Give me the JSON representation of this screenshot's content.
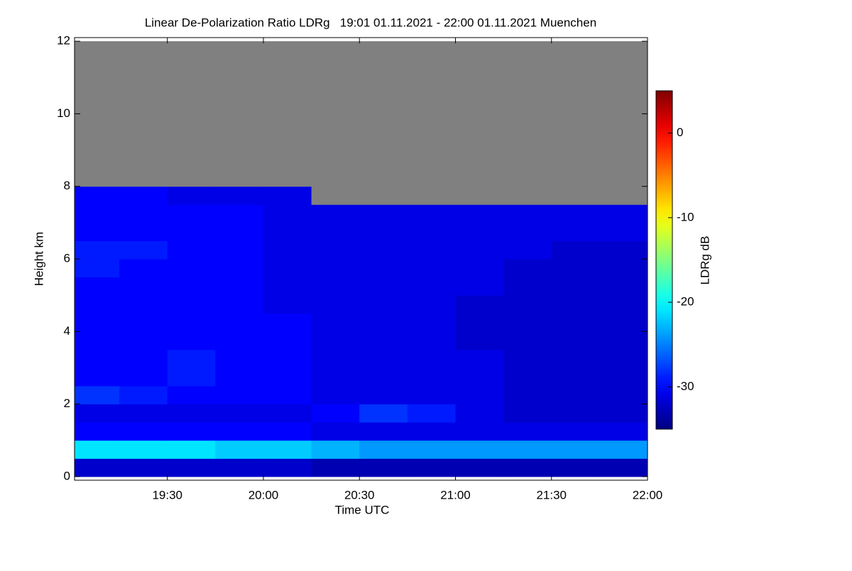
{
  "chart_data": {
    "type": "heatmap",
    "title": "Linear De-Polarization Ratio LDRg   19:01 01.11.2021 - 22:00 01.11.2021 Muenchen",
    "x_label": "Time UTC",
    "y_label": "Height km",
    "colorbar_label": "LDRg dB",
    "colormap": "jet",
    "missing_color": "#808080",
    "x": [
      19.125,
      19.375,
      19.625,
      19.875,
      20.125,
      20.375,
      20.625,
      20.875,
      21.125,
      21.375,
      21.625,
      21.875
    ],
    "y": [
      0.25,
      0.75,
      1.25,
      1.75,
      2.25,
      2.75,
      3.25,
      3.75,
      4.25,
      4.75,
      5.25,
      5.75,
      6.25,
      6.75,
      7.25,
      7.75,
      8.25,
      8.75,
      9.25,
      9.75,
      10.25,
      10.75,
      11.25,
      11.75
    ],
    "z": [
      [
        -32,
        -32,
        -32,
        -32,
        -32,
        -33,
        -33,
        -33,
        -33,
        -33,
        -33,
        -33
      ],
      [
        -21,
        -21,
        -21,
        -22,
        -22,
        -23,
        -24,
        -24,
        -24,
        -24,
        -24,
        -24
      ],
      [
        -30,
        -30,
        -30,
        -30,
        -30,
        -31,
        -31,
        -31,
        -31,
        -31,
        -31,
        -31
      ],
      [
        -31,
        -31,
        -31,
        -31,
        -31,
        -30,
        -28,
        -29,
        -31,
        -32,
        -32,
        -32
      ],
      [
        -28,
        -29,
        -30,
        -30,
        -30,
        -31,
        -31,
        -31,
        -31,
        -32,
        -32,
        -32
      ],
      [
        -30,
        -30,
        -29,
        -30,
        -30,
        -31,
        -31,
        -31,
        -31,
        -32,
        -32,
        -32
      ],
      [
        -30,
        -30,
        -29,
        -30,
        -30,
        -31,
        -31,
        -31,
        -31,
        -32,
        -32,
        -32
      ],
      [
        -30,
        -30,
        -30,
        -30,
        -30,
        -31,
        -31,
        -31,
        -32,
        -32,
        -32,
        -32
      ],
      [
        -30,
        -30,
        -30,
        -30,
        -30,
        -31,
        -31,
        -31,
        -32,
        -32,
        -32,
        -32
      ],
      [
        -30,
        -30,
        -30,
        -30,
        -31,
        -31,
        -31,
        -31,
        -32,
        -32,
        -32,
        -32
      ],
      [
        -30,
        -30,
        -30,
        -30,
        -31,
        -31,
        -31,
        -31,
        -31,
        -32,
        -32,
        -32
      ],
      [
        -29,
        -30,
        -30,
        -30,
        -31,
        -31,
        -31,
        -31,
        -31,
        -32,
        -32,
        -32
      ],
      [
        -29,
        -29,
        -30,
        -30,
        -31,
        -31,
        -31,
        -31,
        -31,
        -31,
        -32,
        -32
      ],
      [
        -30,
        -30,
        -30,
        -30,
        -31,
        -31,
        -31,
        -31,
        -31,
        -31,
        -31,
        -31
      ],
      [
        -30,
        -30,
        -30,
        -30,
        -31,
        -31,
        -31,
        -31,
        -31,
        -31,
        -31,
        -31
      ],
      [
        -30,
        -30,
        -31,
        -31,
        -31,
        null,
        null,
        null,
        null,
        null,
        null,
        null
      ],
      [
        null,
        null,
        null,
        null,
        null,
        null,
        null,
        null,
        null,
        null,
        null,
        null
      ],
      [
        null,
        null,
        null,
        null,
        null,
        null,
        null,
        null,
        null,
        null,
        null,
        null
      ],
      [
        null,
        null,
        null,
        null,
        null,
        null,
        null,
        null,
        null,
        null,
        null,
        null
      ],
      [
        null,
        null,
        null,
        null,
        null,
        null,
        null,
        null,
        null,
        null,
        null,
        null
      ],
      [
        null,
        null,
        null,
        null,
        null,
        null,
        null,
        null,
        null,
        null,
        null,
        null
      ],
      [
        null,
        null,
        null,
        null,
        null,
        null,
        null,
        null,
        null,
        null,
        null,
        null
      ],
      [
        null,
        null,
        null,
        null,
        null,
        null,
        null,
        null,
        null,
        null,
        null,
        null
      ],
      [
        null,
        null,
        null,
        null,
        null,
        null,
        null,
        null,
        null,
        null,
        null,
        null
      ]
    ],
    "xlim": [
      19.0167,
      22.0
    ],
    "xticks": [
      {
        "value": 19.5,
        "label": "19:30"
      },
      {
        "value": 20.0,
        "label": "20:00"
      },
      {
        "value": 20.5,
        "label": "20:30"
      },
      {
        "value": 21.0,
        "label": "21:00"
      },
      {
        "value": 21.5,
        "label": "21:30"
      },
      {
        "value": 22.0,
        "label": "22:00"
      }
    ],
    "ylim": [
      -0.1,
      12.1
    ],
    "yticks": [
      0,
      2,
      4,
      6,
      8,
      10,
      12
    ],
    "clim": [
      -35,
      5
    ],
    "cticks": [
      -30,
      -20,
      -10,
      0
    ]
  }
}
